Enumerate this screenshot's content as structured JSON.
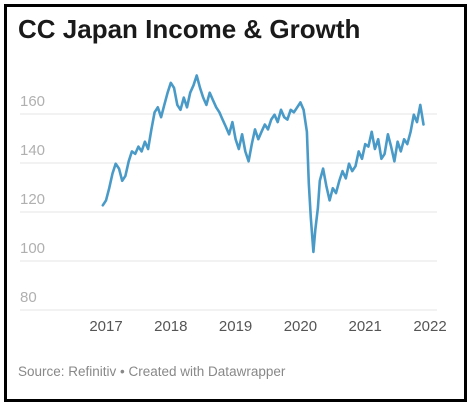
{
  "title": "CC Japan Income & Growth",
  "footer": "Source: Refinitiv • Created with Datawrapper",
  "chart_data": {
    "type": "line",
    "title": "CC Japan Income & Growth",
    "xlabel": "",
    "ylabel": "",
    "xlim": [
      2016.6,
      2022.1
    ],
    "ylim": [
      80,
      170
    ],
    "y_ticks": [
      "80",
      "100",
      "120",
      "140",
      "160"
    ],
    "y_tick_values": [
      80,
      100,
      120,
      140,
      160
    ],
    "x_ticks": [
      "2017",
      "2018",
      "2019",
      "2020",
      "2021",
      "2022"
    ],
    "x_tick_values": [
      2017,
      2018,
      2019,
      2020,
      2021,
      2022
    ],
    "grid": "horizontal",
    "line_color": "#4a9ac8",
    "series": [
      {
        "x": [
          2016.95,
          2017.0,
          2017.05,
          2017.1,
          2017.15,
          2017.2,
          2017.25,
          2017.3,
          2017.35,
          2017.4,
          2017.45,
          2017.5,
          2017.55,
          2017.6,
          2017.65,
          2017.7,
          2017.75,
          2017.8,
          2017.85,
          2017.9,
          2017.95,
          2018.0,
          2018.05,
          2018.1,
          2018.15,
          2018.2,
          2018.25,
          2018.3,
          2018.35,
          2018.4,
          2018.45,
          2018.5,
          2018.55,
          2018.6,
          2018.65,
          2018.7,
          2018.75,
          2018.8,
          2018.85,
          2018.9,
          2018.95,
          2019.0,
          2019.05,
          2019.1,
          2019.15,
          2019.2,
          2019.25,
          2019.3,
          2019.35,
          2019.4,
          2019.45,
          2019.5,
          2019.55,
          2019.6,
          2019.65,
          2019.7,
          2019.75,
          2019.8,
          2019.85,
          2019.9,
          2019.95,
          2020.0,
          2020.05,
          2020.1,
          2020.13,
          2020.16,
          2020.2,
          2020.23,
          2020.27,
          2020.3,
          2020.35,
          2020.4,
          2020.45,
          2020.5,
          2020.55,
          2020.6,
          2020.65,
          2020.7,
          2020.75,
          2020.8,
          2020.85,
          2020.9,
          2020.95,
          2021.0,
          2021.05,
          2021.1,
          2021.15,
          2021.2,
          2021.25,
          2021.3,
          2021.35,
          2021.4,
          2021.45,
          2021.5,
          2021.55,
          2021.6,
          2021.65,
          2021.7,
          2021.75,
          2021.8,
          2021.85,
          2021.9
        ],
        "y": [
          117,
          119,
          124,
          130,
          134,
          132,
          127,
          129,
          135,
          139,
          138,
          141,
          139,
          143,
          140,
          148,
          155,
          157,
          153,
          158,
          163,
          167,
          165,
          158,
          156,
          161,
          157,
          163,
          166,
          170,
          165,
          161,
          158,
          163,
          160,
          157,
          155,
          152,
          149,
          146,
          151,
          144,
          140,
          146,
          139,
          135,
          142,
          148,
          144,
          147,
          150,
          148,
          152,
          154,
          151,
          156,
          153,
          152,
          156,
          155,
          157,
          159,
          156,
          147,
          126,
          112,
          98,
          107,
          116,
          127,
          132,
          125,
          119,
          124,
          122,
          127,
          131,
          128,
          134,
          131,
          133,
          139,
          136,
          142,
          141,
          147,
          140,
          144,
          136,
          138,
          146,
          141,
          135,
          143,
          139,
          144,
          142,
          147,
          154,
          151,
          158,
          150
        ]
      }
    ]
  }
}
